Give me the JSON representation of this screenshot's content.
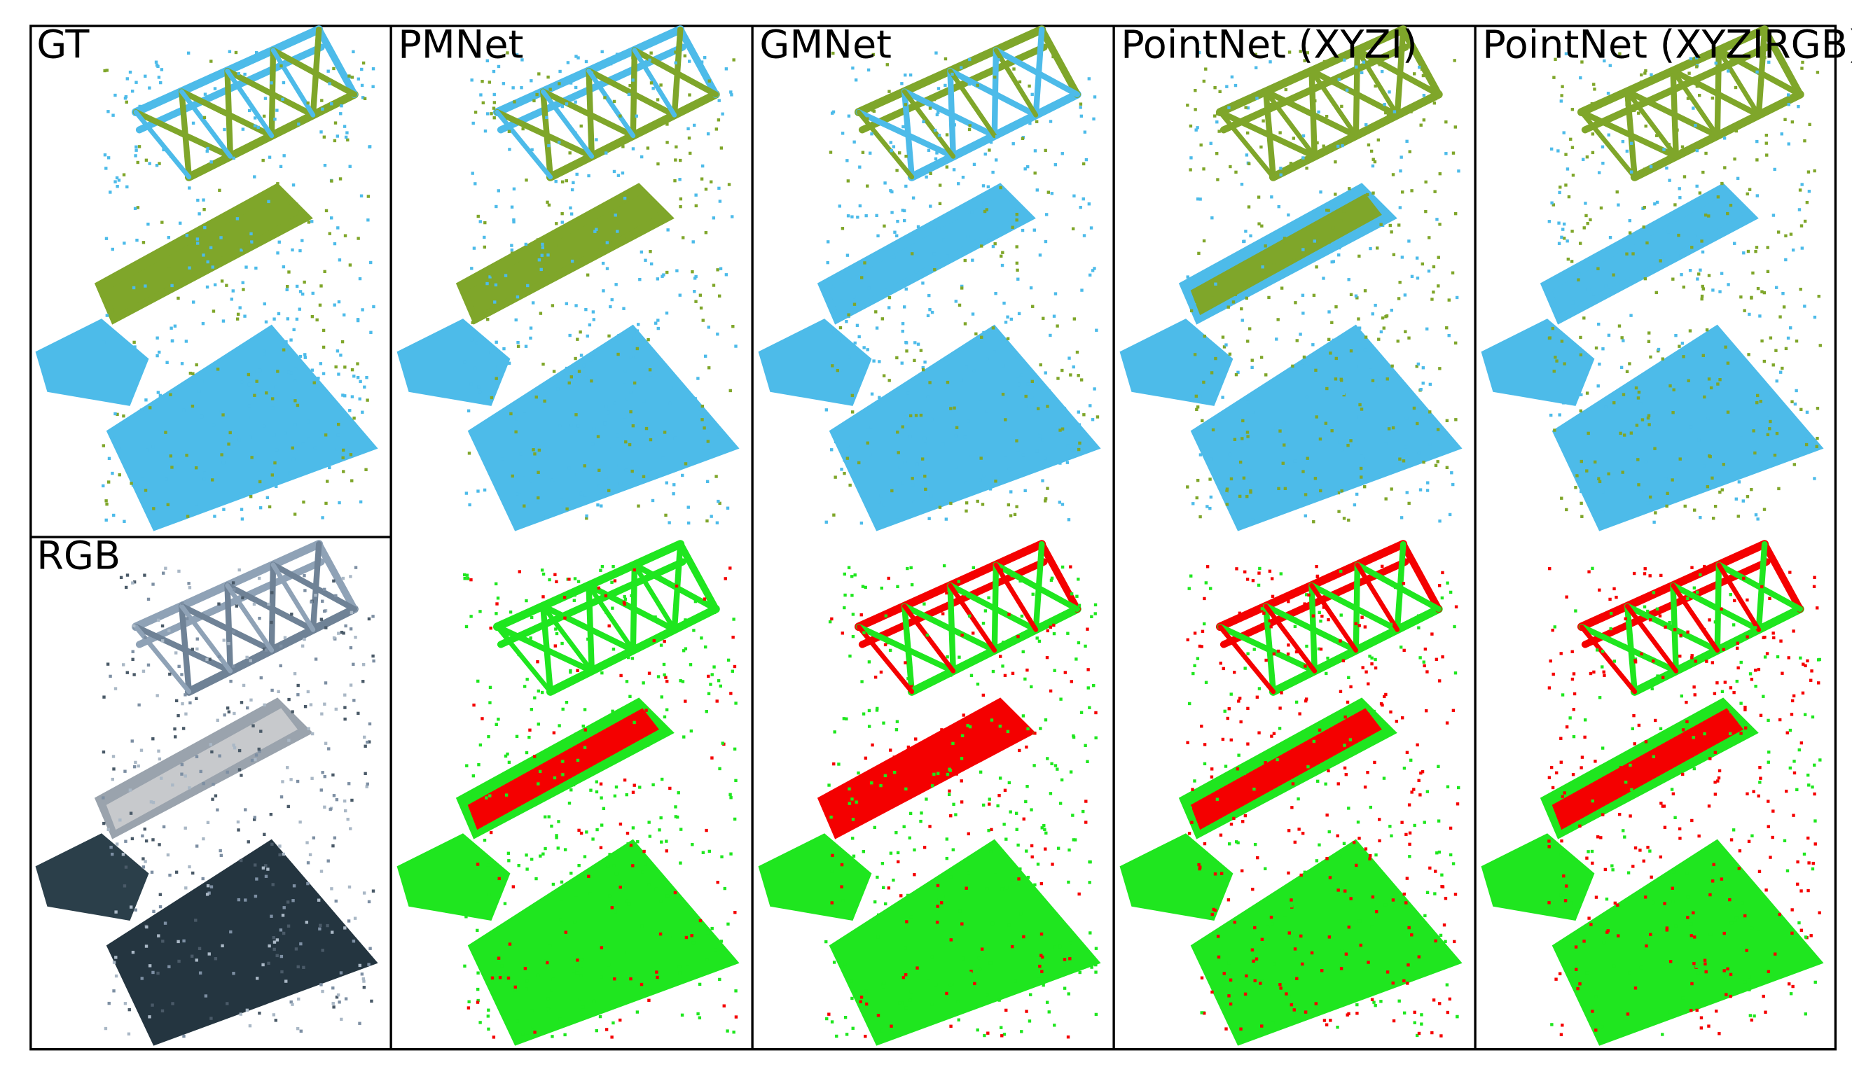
{
  "panels": [
    {
      "label": "GT"
    },
    {
      "label": "RGB"
    },
    {
      "label": "PMNet"
    },
    {
      "label": "GMNet"
    },
    {
      "label": "PointNet (XYZI)"
    },
    {
      "label": "PointNet (XYZIRGB)"
    }
  ]
}
